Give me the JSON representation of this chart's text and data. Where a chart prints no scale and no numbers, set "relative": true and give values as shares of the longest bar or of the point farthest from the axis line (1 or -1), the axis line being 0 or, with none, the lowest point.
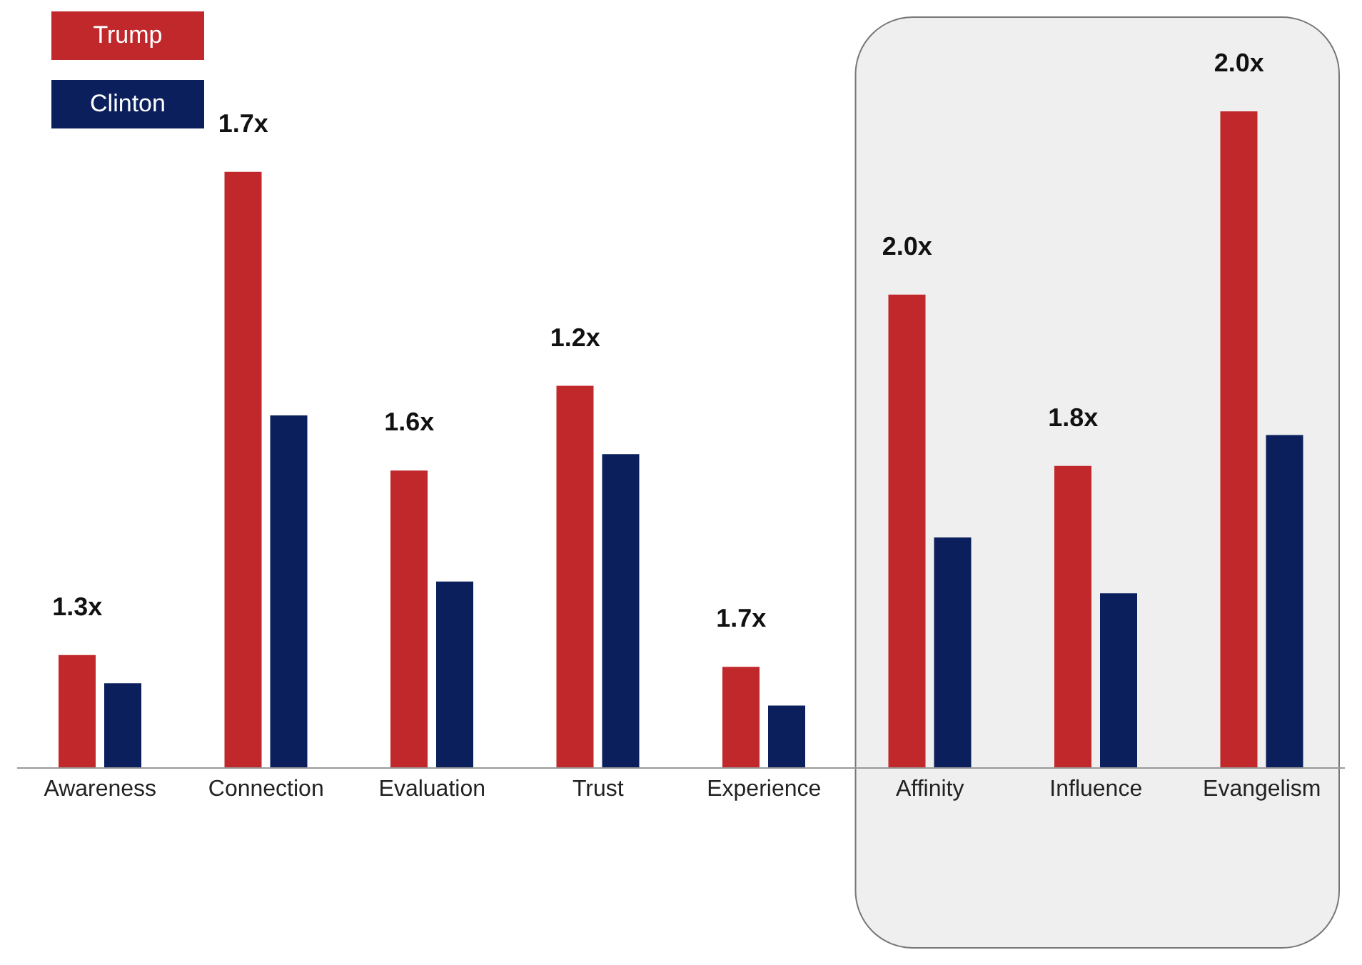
{
  "chart_data": {
    "type": "bar",
    "relative": true,
    "categories": [
      "Awareness",
      "Connection",
      "Evaluation",
      "Trust",
      "Experience",
      "Affinity",
      "Influence",
      "Evangelism"
    ],
    "series": [
      {
        "name": "Trump",
        "color": "#c0282b",
        "values": [
          0.172,
          0.908,
          0.453,
          0.582,
          0.154,
          0.721,
          0.46,
          1.0
        ]
      },
      {
        "name": "Clinton",
        "color": "#0a1f5c",
        "values": [
          0.129,
          0.537,
          0.284,
          0.478,
          0.095,
          0.351,
          0.266,
          0.507
        ]
      }
    ],
    "annotations": [
      "1.3x",
      "1.7x",
      "1.6x",
      "1.2x",
      "1.7x",
      "2.0x",
      "1.8x",
      "2.0x"
    ],
    "bands": [
      {
        "axis": "x",
        "from": "Affinity",
        "to": "Evangelism",
        "color": "#efefef"
      }
    ],
    "legend": "top left"
  }
}
